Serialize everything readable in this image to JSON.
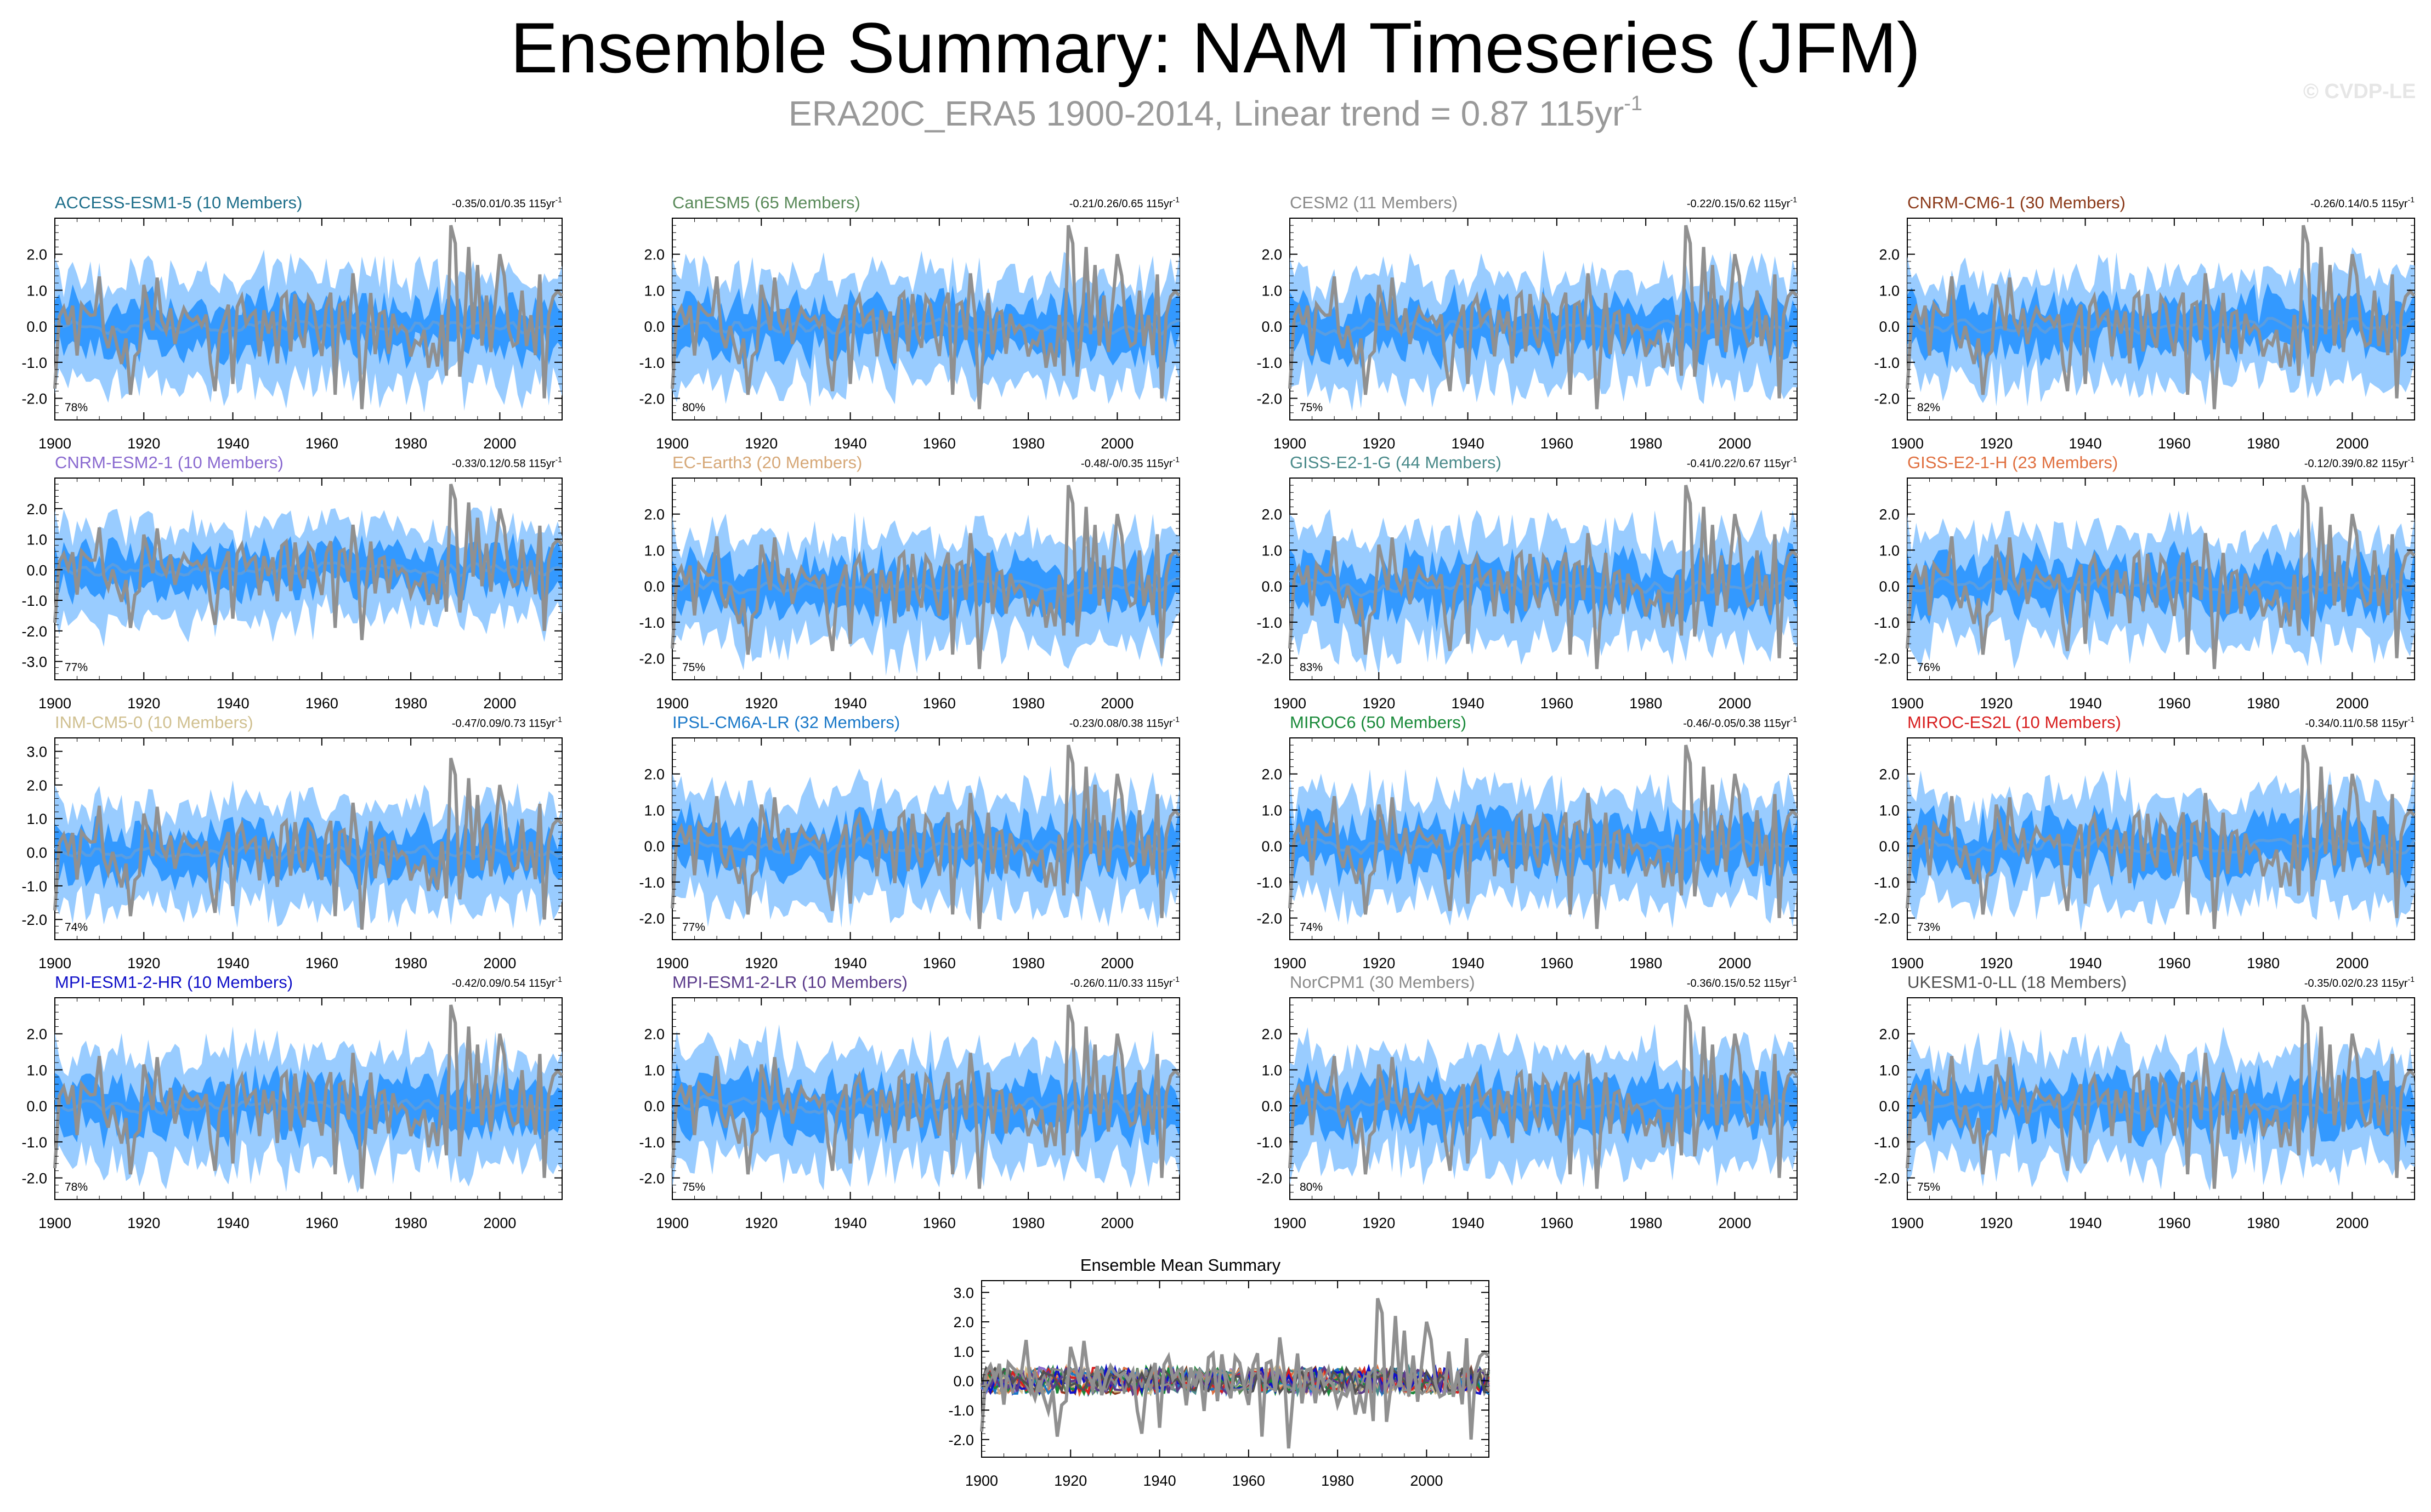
{
  "figure": {
    "title": "Ensemble Summary: NAM Timeseries (JFM)",
    "subtitle": "ERA20C_ERA5 1900-2014, Linear trend = 0.87 115yr",
    "subtitle_exponent": "-1",
    "watermark": "© CVDP-LE",
    "unit_text": "115yr",
    "unit_exponent": "-1"
  },
  "colors": {
    "spread_outer": "#99ccff",
    "spread_inner": "#3399ff",
    "ensemble_mean": "#5a9de0",
    "observed": "#909090"
  },
  "chart_data": [
    {
      "type": "area",
      "title": "ACCESS-ESM1-5 (10 Members)",
      "title_color": "#1f6f8b",
      "trend_range": "-0.35/0.01/0.35",
      "percent": "78%",
      "x_range": [
        1900,
        2014
      ],
      "ylim": [
        -2.6,
        3.0
      ],
      "yticks": [
        "2.0",
        "1.0",
        "0.0",
        "-1.0",
        "-2.0"
      ],
      "xticks": [
        "1900",
        "1920",
        "1940",
        "1960",
        "1980",
        "2000"
      ],
      "series": [
        "obs",
        "ensemble-mean",
        "spread-10-90",
        "spread-25-75"
      ]
    },
    {
      "type": "area",
      "title": "CanESM5 (65 Members)",
      "title_color": "#5a8a5a",
      "trend_range": "-0.21/0.26/0.65",
      "percent": "80%",
      "x_range": [
        1900,
        2014
      ],
      "ylim": [
        -2.6,
        3.0
      ],
      "yticks": [
        "2.0",
        "1.0",
        "0.0",
        "-1.0",
        "-2.0"
      ],
      "xticks": [
        "1900",
        "1920",
        "1940",
        "1960",
        "1980",
        "2000"
      ],
      "series": [
        "obs",
        "ensemble-mean",
        "spread-10-90",
        "spread-25-75"
      ]
    },
    {
      "type": "area",
      "title": "CESM2 (11 Members)",
      "title_color": "#8a8a8a",
      "trend_range": "-0.22/0.15/0.62",
      "percent": "75%",
      "x_range": [
        1900,
        2014
      ],
      "ylim": [
        -2.6,
        3.0
      ],
      "yticks": [
        "2.0",
        "1.0",
        "0.0",
        "-1.0",
        "-2.0"
      ],
      "xticks": [
        "1900",
        "1920",
        "1940",
        "1960",
        "1980",
        "2000"
      ],
      "series": [
        "obs",
        "ensemble-mean",
        "spread-10-90",
        "spread-25-75"
      ]
    },
    {
      "type": "area",
      "title": "CNRM-CM6-1 (30 Members)",
      "title_color": "#8b3a1a",
      "trend_range": "-0.26/0.14/0.5",
      "percent": "82%",
      "x_range": [
        1900,
        2014
      ],
      "ylim": [
        -2.6,
        3.0
      ],
      "yticks": [
        "2.0",
        "1.0",
        "0.0",
        "-1.0",
        "-2.0"
      ],
      "xticks": [
        "1900",
        "1920",
        "1940",
        "1960",
        "1980",
        "2000"
      ],
      "series": [
        "obs",
        "ensemble-mean",
        "spread-10-90",
        "spread-25-75"
      ]
    },
    {
      "type": "area",
      "title": "CNRM-ESM2-1 (10 Members)",
      "title_color": "#8a6ad0",
      "trend_range": "-0.33/0.12/0.58",
      "percent": "77%",
      "x_range": [
        1900,
        2014
      ],
      "ylim": [
        -3.6,
        3.0
      ],
      "yticks": [
        "2.0",
        "1.0",
        "0.0",
        "-1.0",
        "-2.0",
        "-3.0"
      ],
      "xticks": [
        "1900",
        "1920",
        "1940",
        "1960",
        "1980",
        "2000"
      ],
      "series": [
        "obs",
        "ensemble-mean",
        "spread-10-90",
        "spread-25-75"
      ]
    },
    {
      "type": "area",
      "title": "EC-Earth3 (20 Members)",
      "title_color": "#d6a878",
      "trend_range": "-0.48/-0/0.35",
      "percent": "75%",
      "x_range": [
        1900,
        2014
      ],
      "ylim": [
        -2.6,
        3.0
      ],
      "yticks": [
        "2.0",
        "1.0",
        "0.0",
        "-1.0",
        "-2.0"
      ],
      "xticks": [
        "1900",
        "1920",
        "1940",
        "1960",
        "1980",
        "2000"
      ],
      "series": [
        "obs",
        "ensemble-mean",
        "spread-10-90",
        "spread-25-75"
      ]
    },
    {
      "type": "area",
      "title": "GISS-E2-1-G (44 Members)",
      "title_color": "#4a8a8a",
      "trend_range": "-0.41/0.22/0.67",
      "percent": "83%",
      "x_range": [
        1900,
        2014
      ],
      "ylim": [
        -2.6,
        3.0
      ],
      "yticks": [
        "2.0",
        "1.0",
        "0.0",
        "-1.0",
        "-2.0"
      ],
      "xticks": [
        "1900",
        "1920",
        "1940",
        "1960",
        "1980",
        "2000"
      ],
      "series": [
        "obs",
        "ensemble-mean",
        "spread-10-90",
        "spread-25-75"
      ]
    },
    {
      "type": "area",
      "title": "GISS-E2-1-H (23 Members)",
      "title_color": "#e07040",
      "trend_range": "-0.12/0.39/0.82",
      "percent": "76%",
      "x_range": [
        1900,
        2014
      ],
      "ylim": [
        -2.6,
        3.0
      ],
      "yticks": [
        "2.0",
        "1.0",
        "0.0",
        "-1.0",
        "-2.0"
      ],
      "xticks": [
        "1900",
        "1920",
        "1940",
        "1960",
        "1980",
        "2000"
      ],
      "series": [
        "obs",
        "ensemble-mean",
        "spread-10-90",
        "spread-25-75"
      ]
    },
    {
      "type": "area",
      "title": "INM-CM5-0 (10 Members)",
      "title_color": "#d0c090",
      "trend_range": "-0.47/0.09/0.73",
      "percent": "74%",
      "x_range": [
        1900,
        2014
      ],
      "ylim": [
        -2.6,
        3.4
      ],
      "yticks": [
        "3.0",
        "2.0",
        "1.0",
        "0.0",
        "-1.0",
        "-2.0"
      ],
      "xticks": [
        "1900",
        "1920",
        "1940",
        "1960",
        "1980",
        "2000"
      ],
      "series": [
        "obs",
        "ensemble-mean",
        "spread-10-90",
        "spread-25-75"
      ]
    },
    {
      "type": "area",
      "title": "IPSL-CM6A-LR (32 Members)",
      "title_color": "#1a78c8",
      "trend_range": "-0.23/0.08/0.38",
      "percent": "77%",
      "x_range": [
        1900,
        2014
      ],
      "ylim": [
        -2.6,
        3.0
      ],
      "yticks": [
        "2.0",
        "1.0",
        "0.0",
        "-1.0",
        "-2.0"
      ],
      "xticks": [
        "1900",
        "1920",
        "1940",
        "1960",
        "1980",
        "2000"
      ],
      "series": [
        "obs",
        "ensemble-mean",
        "spread-10-90",
        "spread-25-75"
      ]
    },
    {
      "type": "area",
      "title": "MIROC6 (50 Members)",
      "title_color": "#1a8a3a",
      "trend_range": "-0.46/-0.05/0.38",
      "percent": "74%",
      "x_range": [
        1900,
        2014
      ],
      "ylim": [
        -2.6,
        3.0
      ],
      "yticks": [
        "2.0",
        "1.0",
        "0.0",
        "-1.0",
        "-2.0"
      ],
      "xticks": [
        "1900",
        "1920",
        "1940",
        "1960",
        "1980",
        "2000"
      ],
      "series": [
        "obs",
        "ensemble-mean",
        "spread-10-90",
        "spread-25-75"
      ]
    },
    {
      "type": "area",
      "title": "MIROC-ES2L (10 Members)",
      "title_color": "#d82020",
      "trend_range": "-0.34/0.11/0.58",
      "percent": "73%",
      "x_range": [
        1900,
        2014
      ],
      "ylim": [
        -2.6,
        3.0
      ],
      "yticks": [
        "2.0",
        "1.0",
        "0.0",
        "-1.0",
        "-2.0"
      ],
      "xticks": [
        "1900",
        "1920",
        "1940",
        "1960",
        "1980",
        "2000"
      ],
      "series": [
        "obs",
        "ensemble-mean",
        "spread-10-90",
        "spread-25-75"
      ]
    },
    {
      "type": "area",
      "title": "MPI-ESM1-2-HR (10 Members)",
      "title_color": "#1010c8",
      "trend_range": "-0.42/0.09/0.54",
      "percent": "78%",
      "x_range": [
        1900,
        2014
      ],
      "ylim": [
        -2.6,
        3.0
      ],
      "yticks": [
        "2.0",
        "1.0",
        "0.0",
        "-1.0",
        "-2.0"
      ],
      "xticks": [
        "1900",
        "1920",
        "1940",
        "1960",
        "1980",
        "2000"
      ],
      "series": [
        "obs",
        "ensemble-mean",
        "spread-10-90",
        "spread-25-75"
      ]
    },
    {
      "type": "area",
      "title": "MPI-ESM1-2-LR (10 Members)",
      "title_color": "#5a3a8a",
      "trend_range": "-0.26/0.11/0.33",
      "percent": "75%",
      "x_range": [
        1900,
        2014
      ],
      "ylim": [
        -2.6,
        3.0
      ],
      "yticks": [
        "2.0",
        "1.0",
        "0.0",
        "-1.0",
        "-2.0"
      ],
      "xticks": [
        "1900",
        "1920",
        "1940",
        "1960",
        "1980",
        "2000"
      ],
      "series": [
        "obs",
        "ensemble-mean",
        "spread-10-90",
        "spread-25-75"
      ]
    },
    {
      "type": "area",
      "title": "NorCPM1 (30 Members)",
      "title_color": "#8a8a8a",
      "trend_range": "-0.36/0.15/0.52",
      "percent": "80%",
      "x_range": [
        1900,
        2014
      ],
      "ylim": [
        -2.6,
        3.0
      ],
      "yticks": [
        "2.0",
        "1.0",
        "0.0",
        "-1.0",
        "-2.0"
      ],
      "xticks": [
        "1900",
        "1920",
        "1940",
        "1960",
        "1980",
        "2000"
      ],
      "series": [
        "obs",
        "ensemble-mean",
        "spread-10-90",
        "spread-25-75"
      ]
    },
    {
      "type": "area",
      "title": "UKESM1-0-LL (18 Members)",
      "title_color": "#505050",
      "trend_range": "-0.35/0.02/0.23",
      "percent": "75%",
      "x_range": [
        1900,
        2014
      ],
      "ylim": [
        -2.6,
        3.0
      ],
      "yticks": [
        "2.0",
        "1.0",
        "0.0",
        "-1.0",
        "-2.0"
      ],
      "xticks": [
        "1900",
        "1920",
        "1940",
        "1960",
        "1980",
        "2000"
      ],
      "series": [
        "obs",
        "ensemble-mean",
        "spread-10-90",
        "spread-25-75"
      ]
    },
    {
      "type": "line",
      "title": "Ensemble Mean Summary",
      "x_range": [
        1900,
        2014
      ],
      "ylim": [
        -2.6,
        3.4
      ],
      "yticks": [
        "3.0",
        "2.0",
        "1.0",
        "0.0",
        "-1.0",
        "-2.0"
      ],
      "xticks": [
        "1900",
        "1920",
        "1940",
        "1960",
        "1980",
        "2000"
      ],
      "series": [
        "obs",
        "ACCESS-ESM1-5",
        "CanESM5",
        "CESM2",
        "CNRM-CM6-1",
        "CNRM-ESM2-1",
        "EC-Earth3",
        "GISS-E2-1-G",
        "GISS-E2-1-H",
        "INM-CM5-0",
        "IPSL-CM6A-LR",
        "MIROC6",
        "MIROC-ES2L",
        "MPI-ESM1-2-HR",
        "MPI-ESM1-2-LR",
        "NorCPM1",
        "UKESM1-0-LL"
      ]
    }
  ]
}
